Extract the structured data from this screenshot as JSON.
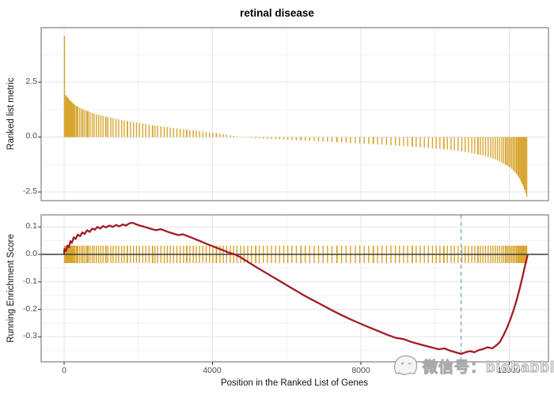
{
  "title": "retinal disease",
  "watermark": {
    "icon": "ghost-logo-icon",
    "text": "微信号：biobabble"
  },
  "colors": {
    "bar_gold": "#D7A42C",
    "es_line": "#A21C26",
    "zero_line": "#3C3C3C",
    "dashed_line": "#86A9C8",
    "panel_border": "#7F7F7F",
    "grid_major": "#E4E4E4",
    "grid_minor": "#F1F1F1",
    "tick_mark": "#333333",
    "tick_text": "#4D4D4D"
  },
  "chart_data": [
    {
      "type": "bar",
      "panel": "ranked-list-metric",
      "ylabel": "Ranked list metric",
      "yticks": [
        "2.5",
        "0.0",
        "-2.5"
      ],
      "ytick_values": [
        2.5,
        0.0,
        -2.5
      ],
      "yminor_values": [
        3.75,
        1.25,
        -1.25
      ],
      "ylim": [
        -2.93,
        5.0
      ],
      "xlim": [
        -620,
        13060
      ],
      "bar_baseline": 0,
      "hit_positions": [
        10,
        40,
        60,
        85,
        95,
        110,
        130,
        155,
        180,
        205,
        230,
        260,
        290,
        330,
        340,
        370,
        420,
        470,
        510,
        560,
        610,
        640,
        650,
        700,
        760,
        810,
        870,
        930,
        990,
        1050,
        1120,
        1130,
        1180,
        1260,
        1320,
        1400,
        1470,
        1550,
        1620,
        1700,
        1710,
        1790,
        1870,
        1950,
        2030,
        2120,
        2200,
        2290,
        2380,
        2390,
        2450,
        2520,
        2610,
        2700,
        2780,
        2860,
        2950,
        3040,
        3130,
        3220,
        3300,
        3310,
        3390,
        3480,
        3560,
        3650,
        3740,
        3830,
        3920,
        4010,
        4100,
        4110,
        4200,
        4290,
        4380,
        4480,
        4570,
        4660,
        4760,
        4850,
        4950,
        5050,
        5160,
        5170,
        5260,
        5370,
        5480,
        5590,
        5700,
        5810,
        5920,
        6030,
        6140,
        6260,
        6380,
        6390,
        6500,
        6620,
        6740,
        6860,
        6980,
        7100,
        7220,
        7350,
        7360,
        7480,
        7600,
        7720,
        7850,
        7970,
        8090,
        8210,
        8330,
        8340,
        8450,
        8570,
        8690,
        8810,
        8930,
        9040,
        9150,
        9260,
        9380,
        9390,
        9490,
        9600,
        9710,
        9820,
        9930,
        10030,
        10130,
        10230,
        10240,
        10330,
        10430,
        10520,
        10620,
        10720,
        10810,
        10900,
        10990,
        11070,
        11150,
        11160,
        11220,
        11290,
        11360,
        11430,
        11500,
        11560,
        11620,
        11680,
        11740,
        11800,
        11850,
        11900,
        11910,
        11950,
        11990,
        12030,
        12070,
        12110,
        12150,
        12190,
        12195,
        12230,
        12260,
        12290,
        12320,
        12325,
        12350,
        12380,
        12410,
        12440,
        12470
      ],
      "metric_envelope": [
        [
          0,
          4.6
        ],
        [
          15,
          4.6
        ],
        [
          35,
          1.92
        ],
        [
          150,
          1.68
        ],
        [
          300,
          1.45
        ],
        [
          500,
          1.27
        ],
        [
          800,
          1.07
        ],
        [
          1200,
          0.9
        ],
        [
          1700,
          0.73
        ],
        [
          2300,
          0.56
        ],
        [
          3000,
          0.4
        ],
        [
          3700,
          0.26
        ],
        [
          4300,
          0.13
        ],
        [
          4700,
          0.02
        ],
        [
          5000,
          -0.03
        ],
        [
          5500,
          -0.08
        ],
        [
          6500,
          -0.16
        ],
        [
          7500,
          -0.25
        ],
        [
          8500,
          -0.34
        ],
        [
          9500,
          -0.45
        ],
        [
          10300,
          -0.56
        ],
        [
          10900,
          -0.7
        ],
        [
          11300,
          -0.84
        ],
        [
          11600,
          -1.0
        ],
        [
          11850,
          -1.2
        ],
        [
          12050,
          -1.42
        ],
        [
          12200,
          -1.68
        ],
        [
          12300,
          -1.95
        ],
        [
          12380,
          -2.25
        ],
        [
          12440,
          -2.55
        ],
        [
          12480,
          -2.78
        ]
      ]
    },
    {
      "type": "line",
      "panel": "running-enrichment-score",
      "ylabel": "Running Enrichment Score",
      "xlabel": "Position in the Ranked List of Genes",
      "yticks": [
        "0.1",
        "0.0",
        "-0.1",
        "-0.2",
        "-0.3"
      ],
      "ytick_values": [
        0.1,
        0.0,
        -0.1,
        -0.2,
        -0.3
      ],
      "yminor_values": [
        0.05,
        -0.05,
        -0.15,
        -0.25,
        -0.35
      ],
      "xticks": [
        "0",
        "4000",
        "8000",
        "12000"
      ],
      "xtick_values": [
        0,
        4000,
        8000,
        12000
      ],
      "xminor_values": [
        2000,
        6000,
        10000
      ],
      "ylim": [
        -0.391,
        0.144
      ],
      "xlim": [
        -620,
        13060
      ],
      "min_es": -0.362,
      "min_es_position": 10700,
      "dashed_line_x": 10700,
      "rug_uses_hit_positions_of_top_panel": true,
      "es_curve": [
        [
          0,
          0.005
        ],
        [
          10,
          0.02
        ],
        [
          50,
          0.012
        ],
        [
          90,
          0.032
        ],
        [
          130,
          0.026
        ],
        [
          170,
          0.048
        ],
        [
          210,
          0.042
        ],
        [
          260,
          0.062
        ],
        [
          310,
          0.056
        ],
        [
          370,
          0.072
        ],
        [
          430,
          0.066
        ],
        [
          490,
          0.08
        ],
        [
          550,
          0.074
        ],
        [
          620,
          0.088
        ],
        [
          690,
          0.082
        ],
        [
          760,
          0.094
        ],
        [
          830,
          0.09
        ],
        [
          900,
          0.1
        ],
        [
          970,
          0.094
        ],
        [
          1050,
          0.103
        ],
        [
          1130,
          0.098
        ],
        [
          1220,
          0.105
        ],
        [
          1310,
          0.1
        ],
        [
          1400,
          0.107
        ],
        [
          1490,
          0.102
        ],
        [
          1580,
          0.109
        ],
        [
          1670,
          0.105
        ],
        [
          1760,
          0.113
        ],
        [
          1850,
          0.115
        ],
        [
          1930,
          0.11
        ],
        [
          2010,
          0.106
        ],
        [
          2120,
          0.102
        ],
        [
          2240,
          0.097
        ],
        [
          2360,
          0.092
        ],
        [
          2480,
          0.088
        ],
        [
          2600,
          0.092
        ],
        [
          2720,
          0.086
        ],
        [
          2840,
          0.08
        ],
        [
          2960,
          0.075
        ],
        [
          3080,
          0.07
        ],
        [
          3200,
          0.073
        ],
        [
          3320,
          0.067
        ],
        [
          3450,
          0.06
        ],
        [
          3580,
          0.053
        ],
        [
          3720,
          0.045
        ],
        [
          3860,
          0.037
        ],
        [
          4000,
          0.03
        ],
        [
          4150,
          0.022
        ],
        [
          4300,
          0.014
        ],
        [
          4450,
          0.006
        ],
        [
          4600,
          0.0
        ],
        [
          4750,
          -0.01
        ],
        [
          4950,
          -0.027
        ],
        [
          5200,
          -0.048
        ],
        [
          5450,
          -0.068
        ],
        [
          5700,
          -0.088
        ],
        [
          5950,
          -0.108
        ],
        [
          6200,
          -0.128
        ],
        [
          6450,
          -0.148
        ],
        [
          6700,
          -0.166
        ],
        [
          6950,
          -0.184
        ],
        [
          7200,
          -0.202
        ],
        [
          7450,
          -0.219
        ],
        [
          7700,
          -0.235
        ],
        [
          7950,
          -0.25
        ],
        [
          8200,
          -0.264
        ],
        [
          8450,
          -0.278
        ],
        [
          8700,
          -0.292
        ],
        [
          8950,
          -0.304
        ],
        [
          9150,
          -0.308
        ],
        [
          9350,
          -0.318
        ],
        [
          9550,
          -0.326
        ],
        [
          9750,
          -0.333
        ],
        [
          9950,
          -0.34
        ],
        [
          10100,
          -0.345
        ],
        [
          10250,
          -0.342
        ],
        [
          10400,
          -0.35
        ],
        [
          10550,
          -0.356
        ],
        [
          10700,
          -0.362
        ],
        [
          10820,
          -0.356
        ],
        [
          10940,
          -0.352
        ],
        [
          11060,
          -0.356
        ],
        [
          11180,
          -0.348
        ],
        [
          11300,
          -0.344
        ],
        [
          11420,
          -0.338
        ],
        [
          11540,
          -0.342
        ],
        [
          11660,
          -0.33
        ],
        [
          11750,
          -0.318
        ],
        [
          11840,
          -0.295
        ],
        [
          11930,
          -0.27
        ],
        [
          12020,
          -0.24
        ],
        [
          12110,
          -0.205
        ],
        [
          12200,
          -0.165
        ],
        [
          12280,
          -0.125
        ],
        [
          12350,
          -0.085
        ],
        [
          12410,
          -0.05
        ],
        [
          12460,
          -0.02
        ],
        [
          12490,
          -0.005
        ]
      ]
    }
  ]
}
